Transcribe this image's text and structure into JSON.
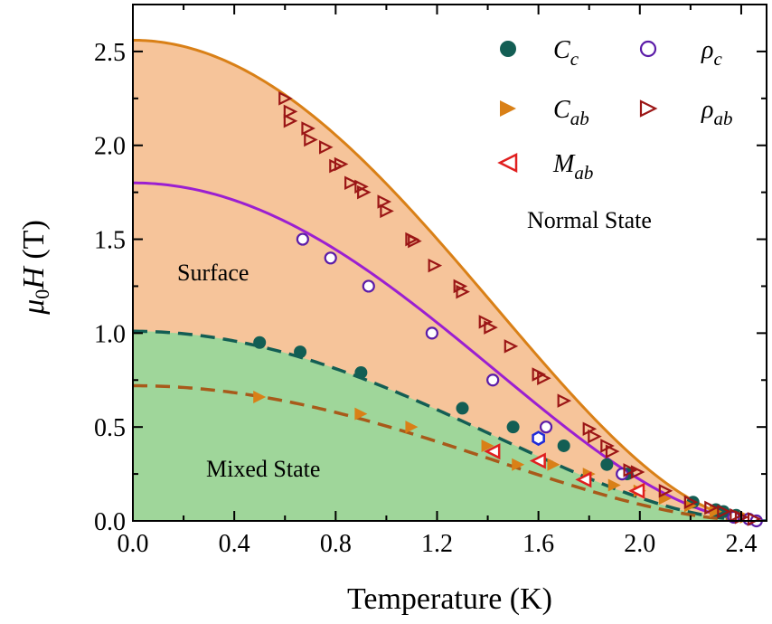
{
  "chart_data": {
    "type": "scatter",
    "xlabel": "Temperature (K)",
    "ylabel": {
      "main": "μ",
      "sub": "0",
      "italic": "H",
      "unit": " (T)"
    },
    "xlim": [
      0.0,
      2.5
    ],
    "ylim": [
      0.0,
      2.75
    ],
    "xticks": [
      "0.0",
      "0.4",
      "0.8",
      "1.2",
      "1.6",
      "2.0",
      "2.4"
    ],
    "yticks": [
      "0.0",
      "0.5",
      "1.0",
      "1.5",
      "2.0",
      "2.5"
    ],
    "legend_position": "top-right",
    "regions": [
      {
        "label": "Normal State",
        "color": "#ffffff"
      },
      {
        "label": "Surface",
        "color": "#f6c49a"
      },
      {
        "label": "Mixed State",
        "color": "#9fd69a"
      }
    ],
    "curves": [
      {
        "key": "rho_ab_fit",
        "style": "solid",
        "color": "#d98017",
        "h0": 2.56,
        "tc": 2.48
      },
      {
        "key": "rho_c_fit",
        "style": "solid",
        "color": "#9b1fd1",
        "h0": 1.8,
        "tc": 2.48
      },
      {
        "key": "C_c_fit",
        "style": "dashed",
        "color": "#135e54",
        "h0": 1.01,
        "tc": 2.48
      },
      {
        "key": "C_ab_fit",
        "style": "dashed",
        "color": "#a85a1a",
        "h0": 0.72,
        "tc": 2.48
      }
    ],
    "series": [
      {
        "name": "C",
        "sub": "c",
        "marker": "circle-filled",
        "color": "#135e54",
        "x": [
          0.5,
          0.66,
          0.9,
          1.3,
          1.5,
          1.7,
          1.87,
          1.95,
          2.21,
          2.3,
          2.33,
          2.38
        ],
        "y": [
          0.95,
          0.9,
          0.79,
          0.6,
          0.5,
          0.4,
          0.3,
          0.25,
          0.1,
          0.06,
          0.05,
          0.03
        ]
      },
      {
        "name": "C",
        "sub": "ab",
        "marker": "triangle-right-filled",
        "color": "#d98017",
        "x": [
          0.5,
          0.9,
          1.1,
          1.4,
          1.52,
          1.66,
          1.8,
          1.9,
          2.0,
          2.1,
          2.2,
          2.3,
          2.38,
          2.42
        ],
        "y": [
          0.66,
          0.57,
          0.5,
          0.4,
          0.3,
          0.3,
          0.25,
          0.19,
          0.16,
          0.12,
          0.08,
          0.05,
          0.03,
          0.02
        ]
      },
      {
        "name": "ρ",
        "sub": "c",
        "marker": "circle-open",
        "color": "#5b1ca8",
        "x": [
          0.67,
          0.78,
          0.93,
          1.18,
          1.42,
          1.63,
          1.93,
          2.37,
          2.43,
          2.46
        ],
        "y": [
          1.5,
          1.4,
          1.25,
          1.0,
          0.75,
          0.5,
          0.25,
          0.02,
          0.01,
          0.0
        ]
      },
      {
        "name": "ρ",
        "sub": "ab",
        "marker": "triangle-right-open",
        "color": "#9b1616",
        "x": [
          0.6,
          0.62,
          0.62,
          0.69,
          0.7,
          0.76,
          0.8,
          0.82,
          0.86,
          0.9,
          0.91,
          0.99,
          1.0,
          1.1,
          1.11,
          1.19,
          1.29,
          1.3,
          1.39,
          1.41,
          1.49,
          1.6,
          1.62,
          1.7,
          1.8,
          1.82,
          1.87,
          1.89,
          1.96,
          1.99,
          2.1,
          2.2,
          2.28,
          2.33,
          2.38,
          2.4,
          2.45
        ],
        "y": [
          2.25,
          2.18,
          2.13,
          2.09,
          2.03,
          1.99,
          1.89,
          1.9,
          1.8,
          1.78,
          1.75,
          1.7,
          1.65,
          1.5,
          1.49,
          1.36,
          1.25,
          1.22,
          1.06,
          1.03,
          0.93,
          0.78,
          0.76,
          0.64,
          0.49,
          0.45,
          0.4,
          0.37,
          0.27,
          0.26,
          0.16,
          0.1,
          0.07,
          0.05,
          0.03,
          0.02,
          0.01
        ]
      },
      {
        "name": "M",
        "sub": "ab",
        "marker": "triangle-left-open",
        "color": "#e01f1f",
        "x": [
          1.42,
          1.6,
          1.78,
          1.99
        ],
        "y": [
          0.37,
          0.32,
          0.22,
          0.16
        ]
      },
      {
        "name": "",
        "sub": "",
        "marker": "hexagon-open",
        "color": "#1f2bd9",
        "x": [
          1.6
        ],
        "y": [
          0.44
        ]
      }
    ]
  }
}
